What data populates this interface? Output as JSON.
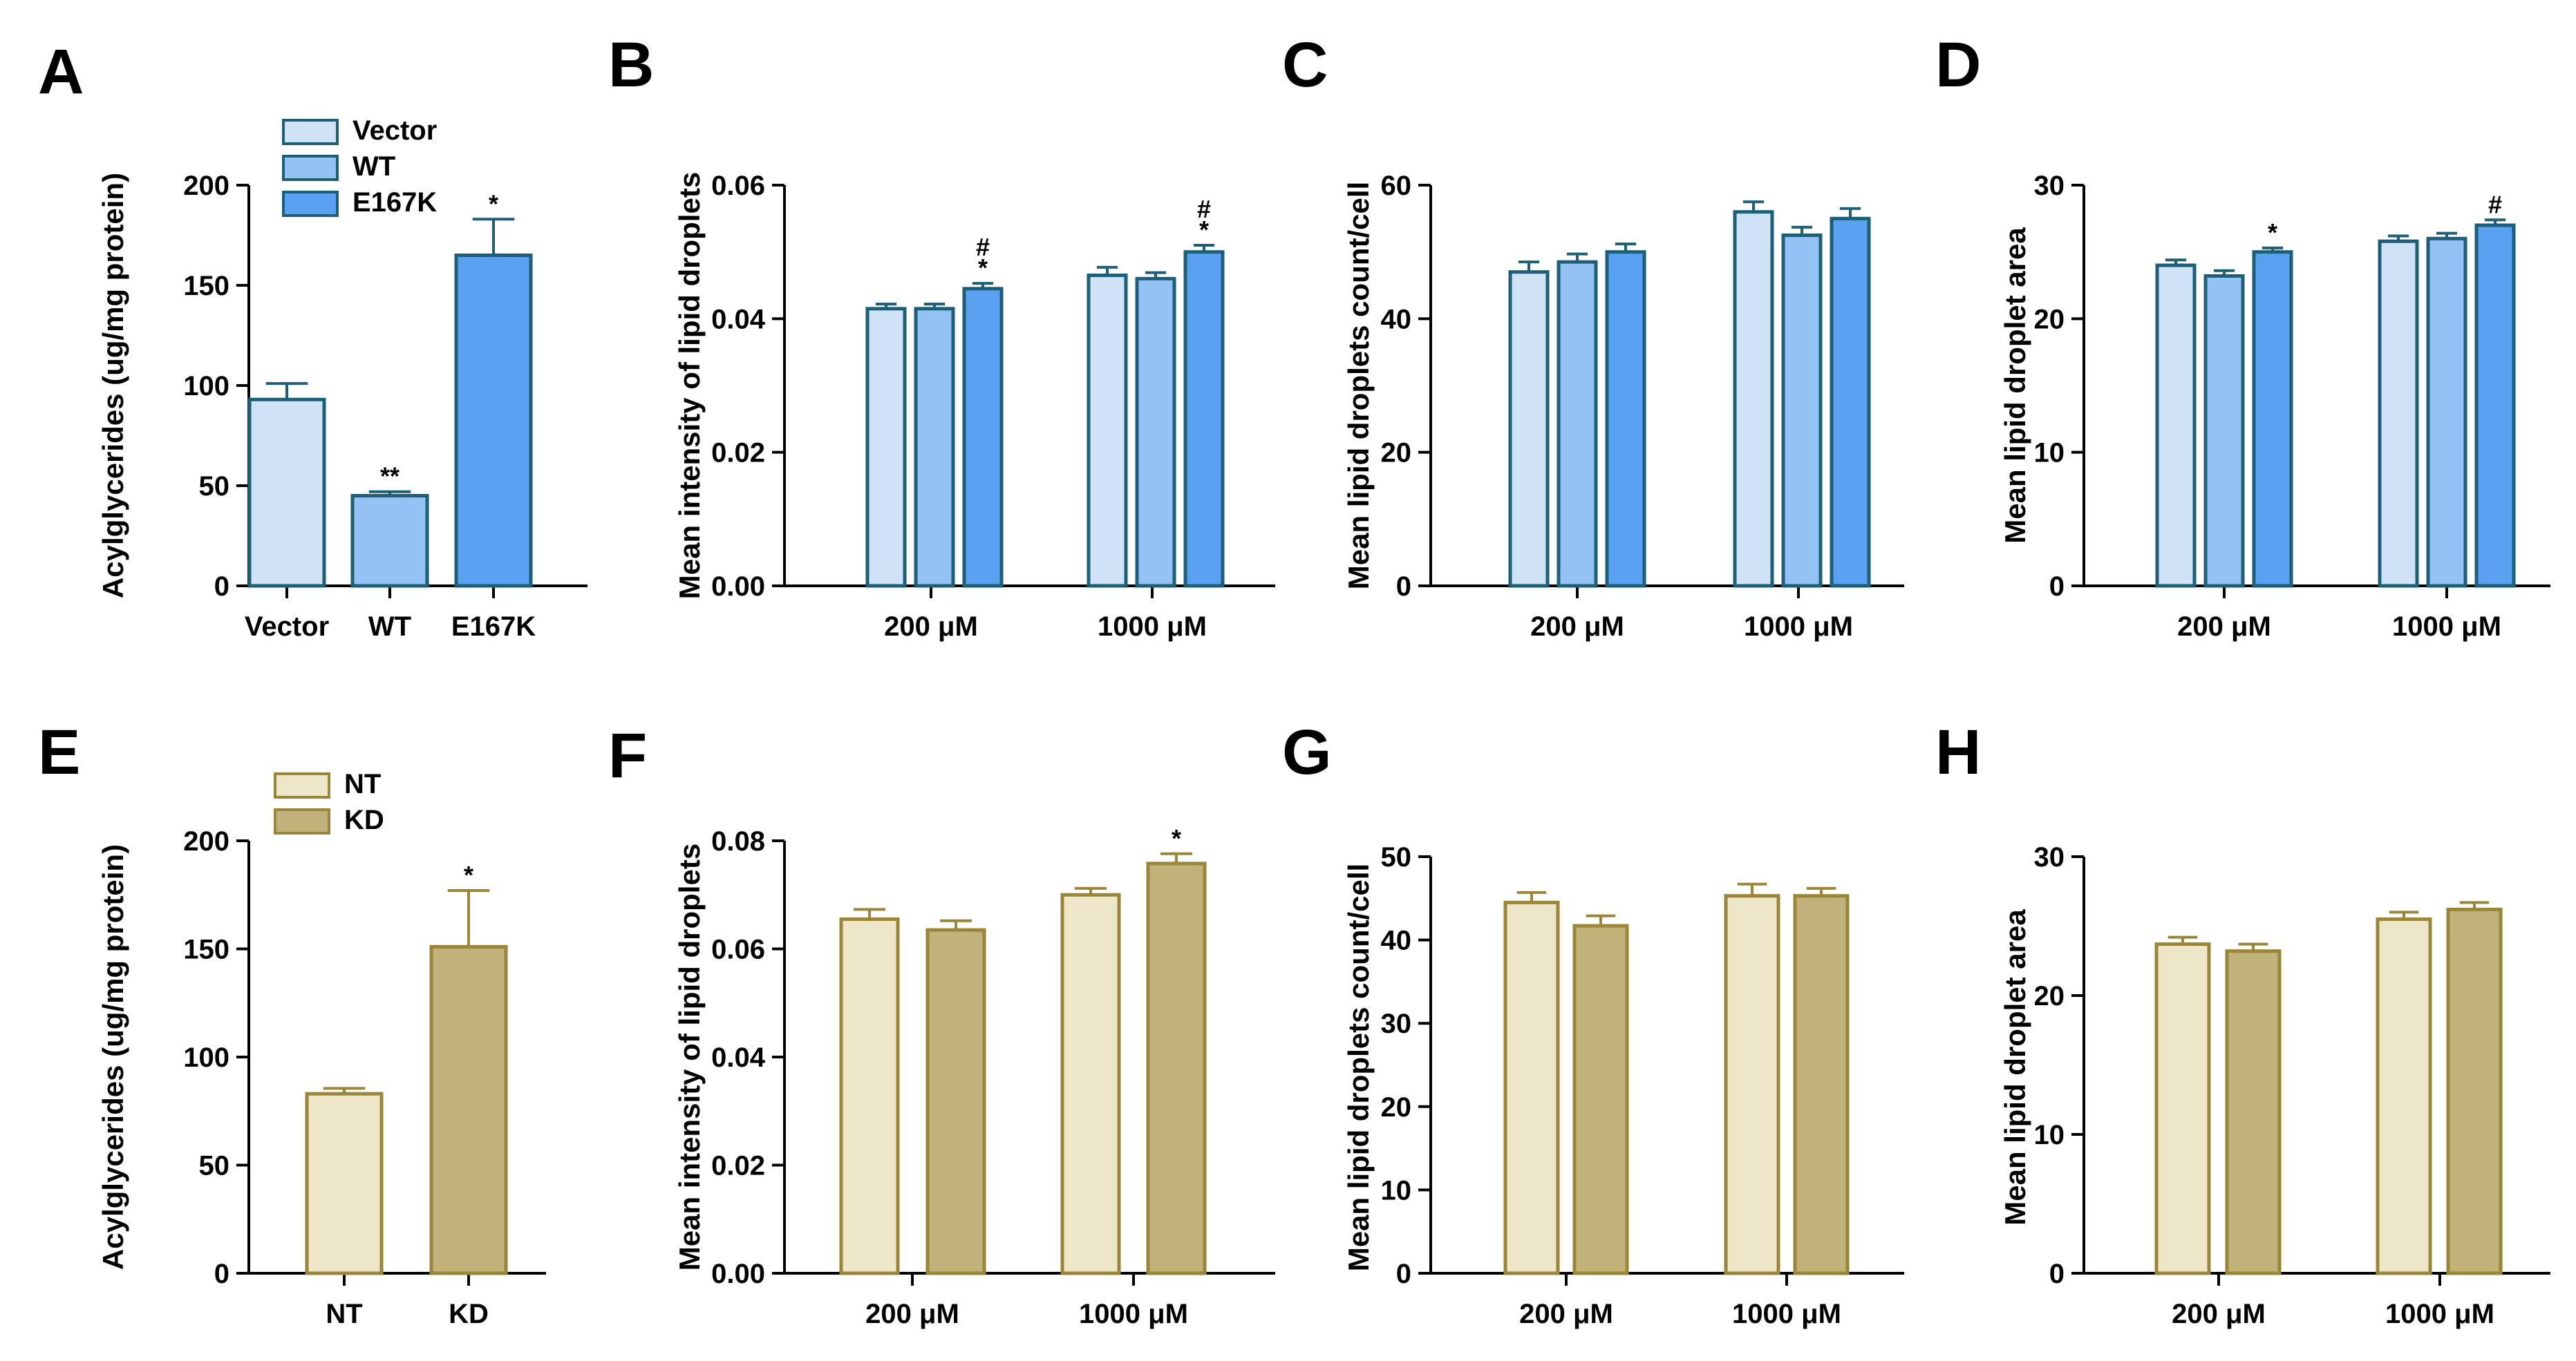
{
  "figure_title": "",
  "colors": {
    "vector": "#cfe2f6",
    "wt": "#95c2f5",
    "e167k": "#5aa1f2",
    "blue_stroke": "#1e5f78",
    "nt": "#ede6c8",
    "kd": "#c0b27a",
    "gold_stroke": "#9a8538"
  },
  "chart_data": [
    {
      "panel": "A",
      "type": "bar",
      "categories": [
        "Vector",
        "WT",
        "E167K"
      ],
      "series": [
        {
          "name": "Acylglycerides",
          "values": [
            93,
            45,
            165
          ],
          "errors": [
            8,
            2,
            18
          ]
        }
      ],
      "significance": [
        "",
        "**",
        "*"
      ],
      "legend": [
        "Vector",
        "WT",
        "E167K"
      ],
      "ylabel": "Acylglycerides (ug/mg protein)",
      "ylim": [
        0,
        200
      ],
      "yticks": [
        "0",
        "50",
        "100",
        "150",
        "200"
      ]
    },
    {
      "panel": "B",
      "type": "bar",
      "categories": [
        "200 μM",
        "1000  μM"
      ],
      "series": [
        {
          "name": "Vector",
          "values": [
            0.0415,
            0.0465
          ],
          "errors": [
            0.0007,
            0.0012
          ]
        },
        {
          "name": "WT",
          "values": [
            0.0415,
            0.046
          ],
          "errors": [
            0.0007,
            0.0009
          ]
        },
        {
          "name": "E167K",
          "values": [
            0.0445,
            0.05
          ],
          "errors": [
            0.0008,
            0.001
          ]
        }
      ],
      "significance": [
        [
          "",
          "",
          "#\n*"
        ],
        [
          "",
          "",
          "#\n*"
        ]
      ],
      "ylabel": "Mean intensity of lipid droplets",
      "ylim": [
        0,
        0.06
      ],
      "yticks": [
        "0.00",
        "0.02",
        "0.04",
        "0.06"
      ]
    },
    {
      "panel": "C",
      "type": "bar",
      "categories": [
        "200 μM",
        "1000 μM"
      ],
      "series": [
        {
          "name": "Vector",
          "values": [
            47,
            56
          ],
          "errors": [
            1.5,
            1.5
          ]
        },
        {
          "name": "WT",
          "values": [
            48.5,
            52.5
          ],
          "errors": [
            1.2,
            1.2
          ]
        },
        {
          "name": "E167K",
          "values": [
            50,
            55
          ],
          "errors": [
            1.2,
            1.5
          ]
        }
      ],
      "significance": [
        [
          "",
          "",
          ""
        ],
        [
          "",
          "",
          ""
        ]
      ],
      "ylabel": "Mean lipid droplets count/cell",
      "ylim": [
        0,
        60
      ],
      "yticks": [
        "0",
        "20",
        "40",
        "60"
      ]
    },
    {
      "panel": "D",
      "type": "bar",
      "categories": [
        "200 μM",
        "1000 μM"
      ],
      "series": [
        {
          "name": "Vector",
          "values": [
            24,
            25.8
          ],
          "errors": [
            0.4,
            0.4
          ]
        },
        {
          "name": "WT",
          "values": [
            23.2,
            26
          ],
          "errors": [
            0.4,
            0.4
          ]
        },
        {
          "name": "E167K",
          "values": [
            25,
            27
          ],
          "errors": [
            0.3,
            0.4
          ]
        }
      ],
      "significance": [
        [
          "",
          "",
          "*"
        ],
        [
          "",
          "",
          "#"
        ]
      ],
      "ylabel": "Mean lipid droplet area",
      "ylim": [
        0,
        30
      ],
      "yticks": [
        "0",
        "10",
        "20",
        "30"
      ]
    },
    {
      "panel": "E",
      "type": "bar",
      "categories": [
        "NT",
        "KD"
      ],
      "series": [
        {
          "name": "Acylglycerides",
          "values": [
            83,
            151
          ],
          "errors": [
            2.5,
            26
          ]
        }
      ],
      "significance": [
        "",
        "*"
      ],
      "legend": [
        "NT",
        "KD"
      ],
      "ylabel": "Acylglycerides (ug/mg protein)",
      "ylim": [
        0,
        200
      ],
      "yticks": [
        "0",
        "50",
        "100",
        "150",
        "200"
      ]
    },
    {
      "panel": "F",
      "type": "bar",
      "categories": [
        "200 μM",
        "1000 μM"
      ],
      "series": [
        {
          "name": "NT",
          "values": [
            0.0655,
            0.07
          ],
          "errors": [
            0.0018,
            0.0012
          ]
        },
        {
          "name": "KD",
          "values": [
            0.0635,
            0.0758
          ],
          "errors": [
            0.0017,
            0.0018
          ]
        }
      ],
      "significance": [
        [
          "",
          ""
        ],
        [
          "",
          "*"
        ]
      ],
      "ylabel": "Mean intensity of lipid droplets",
      "ylim": [
        0,
        0.08
      ],
      "yticks": [
        "0.00",
        "0.02",
        "0.04",
        "0.06",
        "0.08"
      ]
    },
    {
      "panel": "G",
      "type": "bar",
      "categories": [
        "200 μM",
        "1000 μM"
      ],
      "series": [
        {
          "name": "NT",
          "values": [
            44.5,
            45.3
          ],
          "errors": [
            1.2,
            1.4
          ]
        },
        {
          "name": "KD",
          "values": [
            41.7,
            45.3
          ],
          "errors": [
            1.2,
            0.9
          ]
        }
      ],
      "significance": [
        [
          "",
          ""
        ],
        [
          "",
          ""
        ]
      ],
      "ylabel": "Mean lipid droplets count/cell",
      "ylim": [
        0,
        50
      ],
      "yticks": [
        "0",
        "10",
        "20",
        "30",
        "40",
        "50"
      ]
    },
    {
      "panel": "H",
      "type": "bar",
      "categories": [
        "200 μM",
        "1000 μM"
      ],
      "series": [
        {
          "name": "NT",
          "values": [
            23.7,
            25.5
          ],
          "errors": [
            0.5,
            0.5
          ]
        },
        {
          "name": "KD",
          "values": [
            23.2,
            26.2
          ],
          "errors": [
            0.5,
            0.5
          ]
        }
      ],
      "significance": [
        [
          "",
          ""
        ],
        [
          "",
          ""
        ]
      ],
      "ylabel": "Mean lipid droplet area",
      "ylim": [
        0,
        30
      ],
      "yticks": [
        "0",
        "10",
        "20",
        "30"
      ]
    }
  ]
}
